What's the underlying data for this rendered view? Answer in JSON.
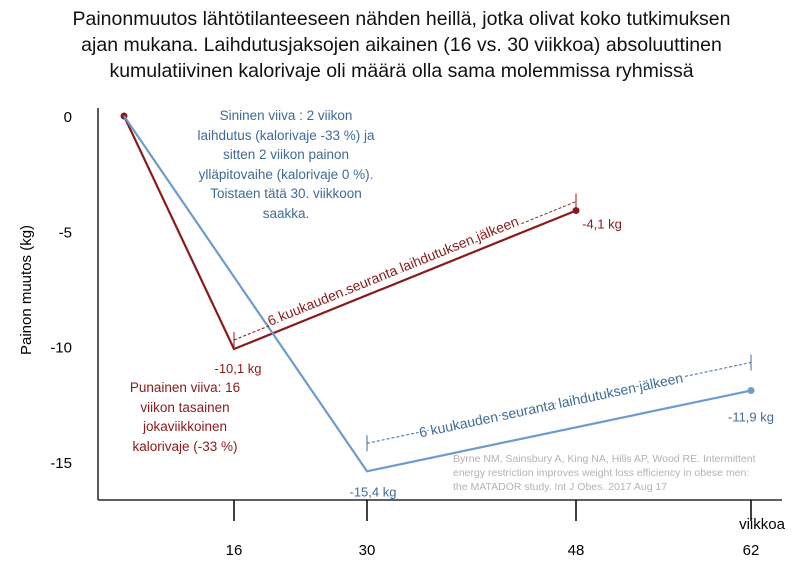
{
  "title_lines": [
    "Painonmuutos lähtötilanteeseen nähden heillä, jotka olivat koko tutkimuksen",
    "ajan mukana. Laihdutusjaksojen aikainen (16 vs. 30 viikkoa) absoluuttinen",
    "kumulatiivinen kalorivaje oli määrä olla sama molemmissa ryhmissä"
  ],
  "blue_note_lines": [
    "Sininen viiva : 2 viikon",
    "laihdutus (kalorivaje -33 %) ja",
    "sitten 2 viikon painon",
    "ylläpitovaihe (kalorivaje 0 %).",
    "Toistaen tätä  30. viikkoon",
    "saakka."
  ],
  "red_note_lines": [
    "Punainen viiva: 16",
    "viikon tasainen",
    "jokaviikkoinen",
    "kalorivaje (-33 %)"
  ],
  "citation_lines": [
    "Byrne NM, Sainsbury A, King NA, Hills AP, Wood RE. Intermittent",
    "energy restriction improves weight loss efficiency in obese men:",
    "the MATADOR study. Int J Obes. 2017 Aug 17"
  ],
  "chart_data": {
    "type": "line",
    "title": "Painonmuutos lähtötilanteeseen nähden heillä, jotka olivat koko tutkimuksen ajan mukana. Laihdutusjaksojen aikainen (16 vs. 30 viikkoa) absoluuttinen kumulatiivinen kalorivaje oli määrä olla sama molemmissa ryhmissä",
    "xlabel": "viikkoa",
    "ylabel": "Painon muutos (kg)",
    "x_ticks": [
      16,
      30,
      48,
      62
    ],
    "y_ticks": [
      0,
      -5,
      -10,
      -15
    ],
    "y_tick_labels": [
      "0",
      "-5",
      "-10",
      "-15"
    ],
    "ylim": [
      -16.5,
      0.5
    ],
    "grid": false,
    "series": [
      {
        "color": "#8b1a1a",
        "x": [
          0,
          16,
          48
        ],
        "y": [
          0,
          -10.1,
          -4.1
        ],
        "point_labels": [
          null,
          "-10,1 kg",
          "-4,1 kg"
        ]
      },
      {
        "color": "#6c9bd1",
        "x": [
          0,
          30,
          62
        ],
        "y": [
          0,
          -15.4,
          -11.9
        ],
        "point_labels": [
          null,
          "-15,4 kg",
          "-11,9 kg"
        ]
      }
    ],
    "annotations": [
      {
        "text": "6 kuukauden seuranta laihdutuksen  jälkeen",
        "color": "#8b1a1a",
        "from_x": 16,
        "to_x": 48,
        "series": 0
      },
      {
        "text": "6 kuukauden seuranta laihdutuksen  jälkeen",
        "color": "#3f6b9a",
        "from_x": 30,
        "to_x": 62,
        "series": 1
      }
    ]
  }
}
